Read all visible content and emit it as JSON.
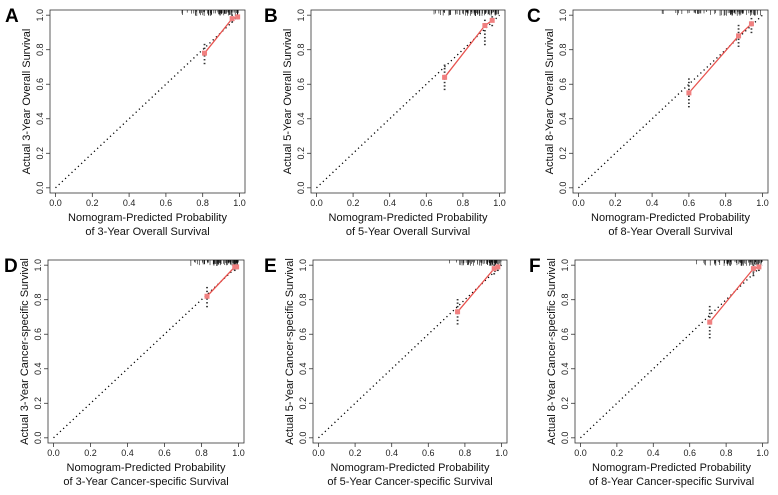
{
  "chart_data": [
    {
      "type": "line",
      "panel_letter": "A",
      "xlabel": [
        "Nomogram-Predicted Probability",
        "of 3-Year Overall Survival"
      ],
      "ylabel": "Actual 3-Year Overall Survival",
      "xlim": [
        -0.03,
        1.03
      ],
      "ylim": [
        -0.03,
        1.03
      ],
      "xticks": [
        0.0,
        0.2,
        0.4,
        0.6,
        0.8,
        1.0
      ],
      "yticks": [
        0.0,
        0.2,
        0.4,
        0.6,
        0.8,
        1.0
      ],
      "xtick_labels": [
        "0.0",
        "0.2",
        "0.4",
        "0.6",
        "0.8",
        "1.0"
      ],
      "ytick_labels": [
        "0.0",
        "0.2",
        "0.4",
        "0.6",
        "0.8",
        "1.0"
      ],
      "series": [
        {
          "x": [
            0.81,
            0.96,
            0.99
          ],
          "y": [
            0.78,
            0.98,
            0.99
          ],
          "ci_lower": [
            0.72,
            0.96,
            0.98
          ],
          "ci_upper": [
            0.83,
            1.0,
            1.0
          ]
        }
      ],
      "rug": {
        "from": 0.65,
        "to": 1.0
      },
      "colors": {
        "calibration": "#e8534f",
        "points": "#f08080"
      }
    },
    {
      "type": "line",
      "panel_letter": "B",
      "xlabel": [
        "Nomogram-Predicted Probability",
        "of 5-Year Overall Survival"
      ],
      "ylabel": "Actual 5-Year Overall Survival",
      "xlim": [
        -0.03,
        1.03
      ],
      "ylim": [
        -0.03,
        1.03
      ],
      "xticks": [
        0.0,
        0.2,
        0.4,
        0.6,
        0.8,
        1.0
      ],
      "yticks": [
        0.0,
        0.2,
        0.4,
        0.6,
        0.8,
        1.0
      ],
      "xtick_labels": [
        "0.0",
        "0.2",
        "0.4",
        "0.6",
        "0.8",
        "1.0"
      ],
      "ytick_labels": [
        "0.0",
        "0.2",
        "0.4",
        "0.6",
        "0.8",
        "1.0"
      ],
      "series": [
        {
          "x": [
            0.7,
            0.92,
            0.96
          ],
          "y": [
            0.64,
            0.94,
            0.97
          ],
          "ci_lower": [
            0.57,
            0.83,
            0.94
          ],
          "ci_upper": [
            0.71,
            0.97,
            0.99
          ]
        }
      ],
      "rug": {
        "from": 0.55,
        "to": 1.0
      },
      "colors": {
        "calibration": "#e8534f",
        "points": "#f08080"
      }
    },
    {
      "type": "line",
      "panel_letter": "C",
      "xlabel": [
        "Nomogram-Predicted Probability",
        "of 8-Year Overall Survival"
      ],
      "ylabel": "Actual 8-Year Overall Survival",
      "xlim": [
        -0.03,
        1.03
      ],
      "ylim": [
        -0.03,
        1.03
      ],
      "xticks": [
        0.0,
        0.2,
        0.4,
        0.6,
        0.8,
        1.0
      ],
      "yticks": [
        0.0,
        0.2,
        0.4,
        0.6,
        0.8,
        1.0
      ],
      "xtick_labels": [
        "0.0",
        "0.2",
        "0.4",
        "0.6",
        "0.8",
        "1.0"
      ],
      "ytick_labels": [
        "0.0",
        "0.2",
        "0.4",
        "0.6",
        "0.8",
        "1.0"
      ],
      "series": [
        {
          "x": [
            0.6,
            0.87,
            0.94
          ],
          "y": [
            0.55,
            0.88,
            0.95
          ],
          "ci_lower": [
            0.47,
            0.82,
            0.9
          ],
          "ci_upper": [
            0.63,
            0.94,
            0.98
          ]
        }
      ],
      "rug": {
        "from": 0.45,
        "to": 1.0
      },
      "colors": {
        "calibration": "#e8534f",
        "points": "#f08080"
      }
    },
    {
      "type": "line",
      "panel_letter": "D",
      "xlabel": [
        "Nomogram-Predicted Probability",
        "of 3-Year Cancer-specific Survival"
      ],
      "ylabel": "Actual 3-Year Cancer-specific Survival",
      "xlim": [
        -0.03,
        1.03
      ],
      "ylim": [
        -0.03,
        1.03
      ],
      "xticks": [
        0.0,
        0.2,
        0.4,
        0.6,
        0.8,
        1.0
      ],
      "yticks": [
        0.0,
        0.2,
        0.4,
        0.6,
        0.8,
        1.0
      ],
      "xtick_labels": [
        "0.0",
        "0.2",
        "0.4",
        "0.6",
        "0.8",
        "1.0"
      ],
      "ytick_labels": [
        "0.0",
        "0.2",
        "0.4",
        "0.6",
        "0.8",
        "1.0"
      ],
      "series": [
        {
          "x": [
            0.83,
            0.98,
            0.99
          ],
          "y": [
            0.82,
            0.99,
            0.99
          ],
          "ci_lower": [
            0.76,
            0.97,
            0.98
          ],
          "ci_upper": [
            0.87,
            1.0,
            1.0
          ]
        }
      ],
      "rug": {
        "from": 0.72,
        "to": 1.0
      },
      "colors": {
        "calibration": "#e8534f",
        "points": "#f08080"
      }
    },
    {
      "type": "line",
      "panel_letter": "E",
      "xlabel": [
        "Nomogram-Predicted Probability",
        "of 5-Year Cancer-specific Survival"
      ],
      "ylabel": "Actual 5-Year Cancer-specific Survival",
      "xlim": [
        -0.03,
        1.03
      ],
      "ylim": [
        -0.03,
        1.03
      ],
      "xticks": [
        0.0,
        0.2,
        0.4,
        0.6,
        0.8,
        1.0
      ],
      "yticks": [
        0.0,
        0.2,
        0.4,
        0.6,
        0.8,
        1.0
      ],
      "xtick_labels": [
        "0.0",
        "0.2",
        "0.4",
        "0.6",
        "0.8",
        "1.0"
      ],
      "ytick_labels": [
        "0.0",
        "0.2",
        "0.4",
        "0.6",
        "0.8",
        "1.0"
      ],
      "series": [
        {
          "x": [
            0.76,
            0.96,
            0.98
          ],
          "y": [
            0.73,
            0.98,
            0.99
          ],
          "ci_lower": [
            0.66,
            0.95,
            0.97
          ],
          "ci_upper": [
            0.8,
            1.0,
            1.0
          ]
        }
      ],
      "rug": {
        "from": 0.65,
        "to": 1.0
      },
      "colors": {
        "calibration": "#e8534f",
        "points": "#f08080"
      }
    },
    {
      "type": "line",
      "panel_letter": "F",
      "xlabel": [
        "Nomogram-Predicted Probability",
        "of 8-Year Cancer-specific Survival"
      ],
      "ylabel": "Actual 8-Year Cancer-specific Survival",
      "xlim": [
        -0.03,
        1.03
      ],
      "ylim": [
        -0.03,
        1.03
      ],
      "xticks": [
        0.0,
        0.2,
        0.4,
        0.6,
        0.8,
        1.0
      ],
      "yticks": [
        0.0,
        0.2,
        0.4,
        0.6,
        0.8,
        1.0
      ],
      "xtick_labels": [
        "0.0",
        "0.2",
        "0.4",
        "0.6",
        "0.8",
        "1.0"
      ],
      "ytick_labels": [
        "0.0",
        "0.2",
        "0.4",
        "0.6",
        "0.8",
        "1.0"
      ],
      "series": [
        {
          "x": [
            0.71,
            0.95,
            0.98
          ],
          "y": [
            0.67,
            0.98,
            0.99
          ],
          "ci_lower": [
            0.58,
            0.94,
            0.97
          ],
          "ci_upper": [
            0.76,
            1.0,
            1.0
          ]
        }
      ],
      "rug": {
        "from": 0.6,
        "to": 1.0
      },
      "colors": {
        "calibration": "#e8534f",
        "points": "#f08080"
      }
    }
  ]
}
